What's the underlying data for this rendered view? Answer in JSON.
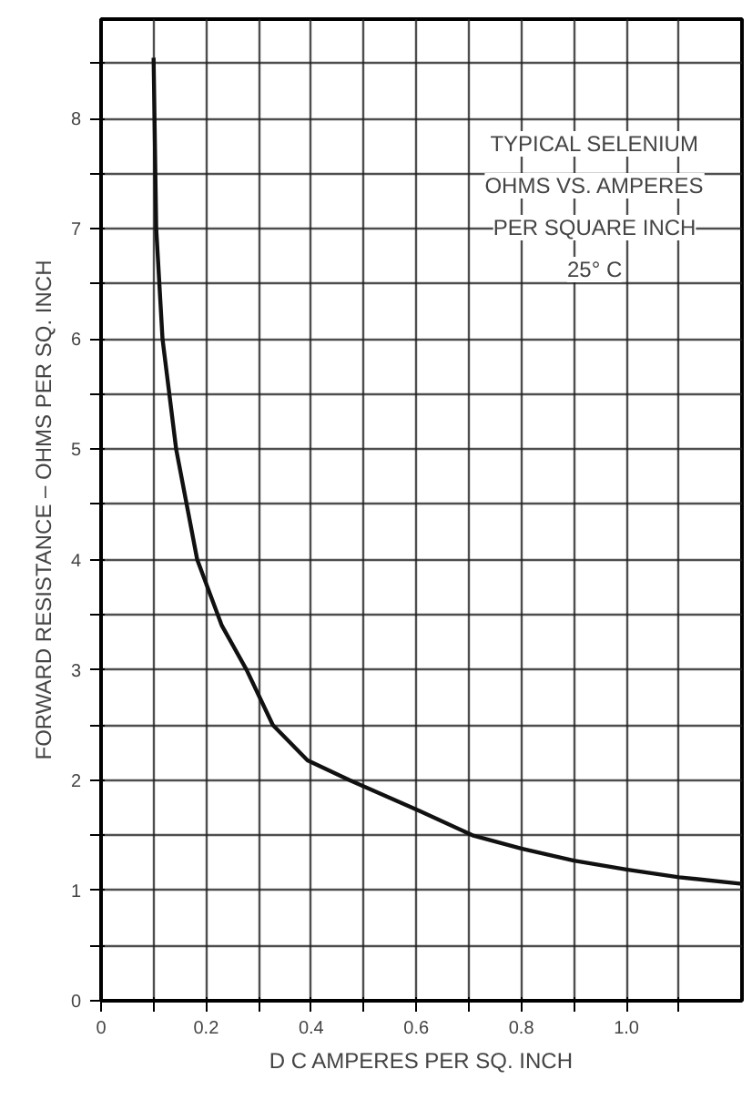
{
  "chart_data": {
    "type": "line",
    "xlabel": "D C AMPERES PER SQ. INCH",
    "ylabel": "FORWARD RESISTANCE – OHMS PER SQ. INCH",
    "annotations": [
      "TYPICAL SELENIUM",
      "OHMS VS. AMPERES",
      "PER SQUARE INCH",
      "25° C"
    ],
    "series": [
      {
        "color": "#111111",
        "x": [
          0.1,
          0.105,
          0.117,
          0.143,
          0.183,
          0.23,
          0.277,
          0.327,
          0.393,
          0.473,
          0.607,
          0.707,
          0.8,
          0.9,
          1.0,
          1.1,
          1.22
        ],
        "values": [
          8.55,
          7.0,
          6.0,
          5.0,
          4.0,
          3.4,
          3.0,
          2.5,
          2.18,
          2.0,
          1.72,
          1.5,
          1.38,
          1.27,
          1.19,
          1.12,
          1.06
        ]
      }
    ],
    "xlim": [
      0,
      1.22
    ],
    "ylim": [
      0,
      8.9
    ],
    "xticks": [
      0,
      {
        "value": 0.1,
        "label": null
      },
      0.2,
      {
        "value": 0.3,
        "label": null
      },
      0.4,
      {
        "value": 0.5,
        "label": null
      },
      0.6,
      {
        "value": 0.7,
        "label": null
      },
      0.8,
      {
        "value": 0.9,
        "label": null
      },
      {
        "value": 1.0,
        "label": "1.0"
      },
      {
        "value": 1.1,
        "label": null
      }
    ],
    "yticks": [
      0,
      {
        "value": 0.5,
        "label": null
      },
      1,
      {
        "value": 1.5,
        "label": null
      },
      2,
      {
        "value": 2.5,
        "label": null
      },
      3,
      {
        "value": 3.5,
        "label": null
      },
      4,
      {
        "value": 4.5,
        "label": null
      },
      5,
      {
        "value": 5.5,
        "label": null
      },
      6,
      {
        "value": 6.5,
        "label": null
      },
      7,
      {
        "value": 7.5,
        "label": null
      },
      8,
      {
        "value": 8.5,
        "label": null
      }
    ],
    "grid": true,
    "marker": "none",
    "line_style": "solid"
  }
}
